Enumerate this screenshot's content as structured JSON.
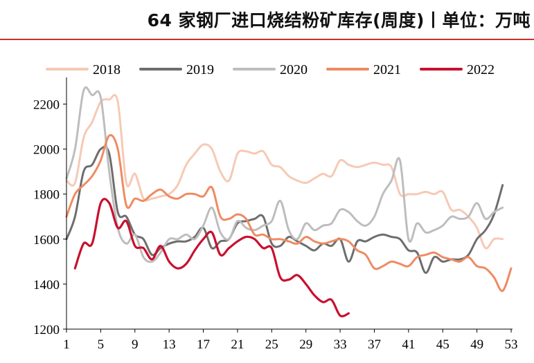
{
  "chart_data": {
    "type": "line",
    "title": "64 家钢厂进口烧结粉矿库存(周度)丨单位：万吨",
    "xlabel": "",
    "ylabel": "",
    "xlim": [
      1,
      53
    ],
    "ylim": [
      1200,
      2300
    ],
    "x_ticks": [
      1,
      5,
      9,
      13,
      17,
      21,
      25,
      29,
      33,
      37,
      41,
      45,
      49,
      53
    ],
    "y_ticks": [
      1200,
      1400,
      1600,
      1800,
      2000,
      2200
    ],
    "legend_position": "top",
    "grid": false,
    "series": [
      {
        "name": "2018",
        "color": "#f6c9b4",
        "x": [
          1,
          2,
          3,
          4,
          5,
          6,
          7,
          8,
          9,
          10,
          11,
          12,
          13,
          14,
          15,
          16,
          17,
          18,
          19,
          20,
          21,
          22,
          23,
          24,
          25,
          26,
          27,
          28,
          29,
          30,
          31,
          32,
          33,
          34,
          35,
          36,
          37,
          38,
          39,
          40,
          41,
          42,
          43,
          44,
          45,
          46,
          47,
          48,
          49,
          50,
          51,
          52
        ],
        "values": [
          1860,
          1850,
          2050,
          2120,
          2210,
          2220,
          2210,
          1850,
          1890,
          1780,
          1780,
          1790,
          1800,
          1840,
          1930,
          1980,
          2020,
          2000,
          1900,
          1860,
          1980,
          1990,
          1980,
          1990,
          1930,
          1920,
          1880,
          1860,
          1850,
          1870,
          1890,
          1880,
          1950,
          1930,
          1920,
          1930,
          1940,
          1930,
          1920,
          1800,
          1800,
          1800,
          1810,
          1800,
          1810,
          1730,
          1730,
          1700,
          1650,
          1560,
          1600,
          1600
        ]
      },
      {
        "name": "2019",
        "color": "#6d6d6d",
        "x": [
          1,
          2,
          3,
          4,
          5,
          6,
          7,
          8,
          9,
          10,
          11,
          12,
          13,
          14,
          15,
          16,
          17,
          18,
          19,
          20,
          21,
          22,
          23,
          24,
          25,
          26,
          27,
          28,
          29,
          30,
          31,
          32,
          33,
          34,
          35,
          36,
          37,
          38,
          39,
          40,
          41,
          42,
          43,
          44,
          45,
          46,
          47,
          48,
          49,
          50,
          51,
          52
        ],
        "values": [
          1600,
          1700,
          1900,
          1930,
          2000,
          1980,
          1720,
          1700,
          1620,
          1600,
          1530,
          1560,
          1580,
          1590,
          1590,
          1610,
          1650,
          1560,
          1590,
          1600,
          1670,
          1680,
          1690,
          1700,
          1580,
          1570,
          1610,
          1590,
          1570,
          1550,
          1580,
          1570,
          1600,
          1500,
          1590,
          1590,
          1610,
          1620,
          1610,
          1600,
          1550,
          1540,
          1450,
          1520,
          1500,
          1510,
          1510,
          1530,
          1600,
          1640,
          1710,
          1840
        ]
      },
      {
        "name": "2020",
        "color": "#bdbdbd",
        "x": [
          1,
          2,
          3,
          4,
          5,
          6,
          7,
          8,
          9,
          10,
          11,
          12,
          13,
          14,
          15,
          16,
          17,
          18,
          19,
          20,
          21,
          22,
          23,
          24,
          25,
          26,
          27,
          28,
          29,
          30,
          31,
          32,
          33,
          34,
          35,
          36,
          37,
          38,
          39,
          40,
          41,
          42,
          43,
          44,
          45,
          46,
          47,
          48,
          49,
          50,
          51,
          52
        ],
        "values": [
          1870,
          2000,
          2260,
          2240,
          2230,
          1900,
          1650,
          1580,
          1620,
          1520,
          1500,
          1540,
          1600,
          1600,
          1620,
          1600,
          1660,
          1740,
          1630,
          1600,
          1680,
          1650,
          1640,
          1660,
          1680,
          1770,
          1640,
          1600,
          1670,
          1640,
          1660,
          1670,
          1730,
          1720,
          1680,
          1660,
          1700,
          1800,
          1860,
          1950,
          1600,
          1670,
          1630,
          1640,
          1660,
          1700,
          1690,
          1700,
          1760,
          1690,
          1720,
          1740
        ]
      },
      {
        "name": "2021",
        "color": "#ef8a62",
        "x": [
          1,
          2,
          3,
          4,
          5,
          6,
          7,
          8,
          9,
          10,
          11,
          12,
          13,
          14,
          15,
          16,
          17,
          18,
          19,
          20,
          21,
          22,
          23,
          24,
          25,
          26,
          27,
          28,
          29,
          30,
          31,
          32,
          33,
          34,
          35,
          36,
          37,
          38,
          39,
          40,
          41,
          42,
          43,
          44,
          45,
          46,
          47,
          48,
          49,
          50,
          51,
          52,
          53
        ],
        "values": [
          1700,
          1800,
          1840,
          1880,
          1950,
          2060,
          2000,
          1750,
          1780,
          1770,
          1800,
          1820,
          1790,
          1780,
          1800,
          1800,
          1790,
          1830,
          1700,
          1690,
          1710,
          1690,
          1620,
          1620,
          1600,
          1600,
          1590,
          1580,
          1610,
          1590,
          1580,
          1590,
          1600,
          1590,
          1550,
          1530,
          1470,
          1480,
          1500,
          1490,
          1480,
          1520,
          1530,
          1540,
          1520,
          1510,
          1500,
          1520,
          1480,
          1470,
          1430,
          1370,
          1470
        ]
      },
      {
        "name": "2022",
        "color": "#c8102e",
        "x": [
          2,
          3,
          4,
          5,
          6,
          7,
          8,
          9,
          10,
          11,
          12,
          13,
          14,
          15,
          16,
          17,
          18,
          19,
          20,
          21,
          22,
          23,
          24,
          25,
          26,
          27,
          28,
          29,
          30,
          31,
          32,
          33,
          34
        ],
        "values": [
          1470,
          1580,
          1580,
          1760,
          1760,
          1650,
          1680,
          1570,
          1560,
          1510,
          1570,
          1500,
          1470,
          1490,
          1550,
          1600,
          1630,
          1530,
          1560,
          1590,
          1610,
          1600,
          1560,
          1560,
          1430,
          1420,
          1440,
          1400,
          1350,
          1320,
          1330,
          1260,
          1270
        ]
      }
    ]
  }
}
